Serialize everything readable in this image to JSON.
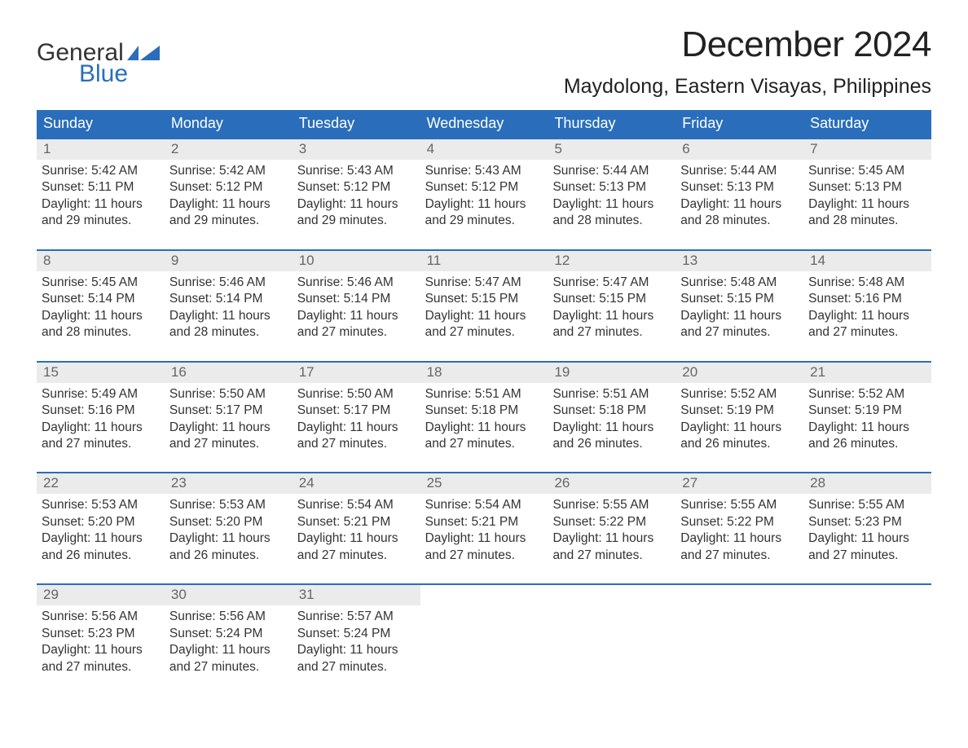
{
  "logo": {
    "text_general": "General",
    "text_blue": "Blue",
    "flag_color": "#2a6ebb"
  },
  "title": "December 2024",
  "subtitle": "Maydolong, Eastern Visayas, Philippines",
  "colors": {
    "header_bg": "#2a6ebb",
    "header_text": "#ffffff",
    "daynum_bg": "#ebebeb",
    "daynum_text": "#666666",
    "body_text": "#333333",
    "week_border": "#2a6ebb",
    "background": "#ffffff"
  },
  "typography": {
    "title_fontsize": 44,
    "subtitle_fontsize": 25,
    "dayhead_fontsize": 18,
    "daynum_fontsize": 17,
    "body_fontsize": 15.5,
    "font_family": "Arial"
  },
  "day_headers": [
    "Sunday",
    "Monday",
    "Tuesday",
    "Wednesday",
    "Thursday",
    "Friday",
    "Saturday"
  ],
  "weeks": [
    [
      {
        "day": "1",
        "sunrise": "Sunrise: 5:42 AM",
        "sunset": "Sunset: 5:11 PM",
        "daylight1": "Daylight: 11 hours",
        "daylight2": "and 29 minutes."
      },
      {
        "day": "2",
        "sunrise": "Sunrise: 5:42 AM",
        "sunset": "Sunset: 5:12 PM",
        "daylight1": "Daylight: 11 hours",
        "daylight2": "and 29 minutes."
      },
      {
        "day": "3",
        "sunrise": "Sunrise: 5:43 AM",
        "sunset": "Sunset: 5:12 PM",
        "daylight1": "Daylight: 11 hours",
        "daylight2": "and 29 minutes."
      },
      {
        "day": "4",
        "sunrise": "Sunrise: 5:43 AM",
        "sunset": "Sunset: 5:12 PM",
        "daylight1": "Daylight: 11 hours",
        "daylight2": "and 29 minutes."
      },
      {
        "day": "5",
        "sunrise": "Sunrise: 5:44 AM",
        "sunset": "Sunset: 5:13 PM",
        "daylight1": "Daylight: 11 hours",
        "daylight2": "and 28 minutes."
      },
      {
        "day": "6",
        "sunrise": "Sunrise: 5:44 AM",
        "sunset": "Sunset: 5:13 PM",
        "daylight1": "Daylight: 11 hours",
        "daylight2": "and 28 minutes."
      },
      {
        "day": "7",
        "sunrise": "Sunrise: 5:45 AM",
        "sunset": "Sunset: 5:13 PM",
        "daylight1": "Daylight: 11 hours",
        "daylight2": "and 28 minutes."
      }
    ],
    [
      {
        "day": "8",
        "sunrise": "Sunrise: 5:45 AM",
        "sunset": "Sunset: 5:14 PM",
        "daylight1": "Daylight: 11 hours",
        "daylight2": "and 28 minutes."
      },
      {
        "day": "9",
        "sunrise": "Sunrise: 5:46 AM",
        "sunset": "Sunset: 5:14 PM",
        "daylight1": "Daylight: 11 hours",
        "daylight2": "and 28 minutes."
      },
      {
        "day": "10",
        "sunrise": "Sunrise: 5:46 AM",
        "sunset": "Sunset: 5:14 PM",
        "daylight1": "Daylight: 11 hours",
        "daylight2": "and 27 minutes."
      },
      {
        "day": "11",
        "sunrise": "Sunrise: 5:47 AM",
        "sunset": "Sunset: 5:15 PM",
        "daylight1": "Daylight: 11 hours",
        "daylight2": "and 27 minutes."
      },
      {
        "day": "12",
        "sunrise": "Sunrise: 5:47 AM",
        "sunset": "Sunset: 5:15 PM",
        "daylight1": "Daylight: 11 hours",
        "daylight2": "and 27 minutes."
      },
      {
        "day": "13",
        "sunrise": "Sunrise: 5:48 AM",
        "sunset": "Sunset: 5:15 PM",
        "daylight1": "Daylight: 11 hours",
        "daylight2": "and 27 minutes."
      },
      {
        "day": "14",
        "sunrise": "Sunrise: 5:48 AM",
        "sunset": "Sunset: 5:16 PM",
        "daylight1": "Daylight: 11 hours",
        "daylight2": "and 27 minutes."
      }
    ],
    [
      {
        "day": "15",
        "sunrise": "Sunrise: 5:49 AM",
        "sunset": "Sunset: 5:16 PM",
        "daylight1": "Daylight: 11 hours",
        "daylight2": "and 27 minutes."
      },
      {
        "day": "16",
        "sunrise": "Sunrise: 5:50 AM",
        "sunset": "Sunset: 5:17 PM",
        "daylight1": "Daylight: 11 hours",
        "daylight2": "and 27 minutes."
      },
      {
        "day": "17",
        "sunrise": "Sunrise: 5:50 AM",
        "sunset": "Sunset: 5:17 PM",
        "daylight1": "Daylight: 11 hours",
        "daylight2": "and 27 minutes."
      },
      {
        "day": "18",
        "sunrise": "Sunrise: 5:51 AM",
        "sunset": "Sunset: 5:18 PM",
        "daylight1": "Daylight: 11 hours",
        "daylight2": "and 27 minutes."
      },
      {
        "day": "19",
        "sunrise": "Sunrise: 5:51 AM",
        "sunset": "Sunset: 5:18 PM",
        "daylight1": "Daylight: 11 hours",
        "daylight2": "and 26 minutes."
      },
      {
        "day": "20",
        "sunrise": "Sunrise: 5:52 AM",
        "sunset": "Sunset: 5:19 PM",
        "daylight1": "Daylight: 11 hours",
        "daylight2": "and 26 minutes."
      },
      {
        "day": "21",
        "sunrise": "Sunrise: 5:52 AM",
        "sunset": "Sunset: 5:19 PM",
        "daylight1": "Daylight: 11 hours",
        "daylight2": "and 26 minutes."
      }
    ],
    [
      {
        "day": "22",
        "sunrise": "Sunrise: 5:53 AM",
        "sunset": "Sunset: 5:20 PM",
        "daylight1": "Daylight: 11 hours",
        "daylight2": "and 26 minutes."
      },
      {
        "day": "23",
        "sunrise": "Sunrise: 5:53 AM",
        "sunset": "Sunset: 5:20 PM",
        "daylight1": "Daylight: 11 hours",
        "daylight2": "and 26 minutes."
      },
      {
        "day": "24",
        "sunrise": "Sunrise: 5:54 AM",
        "sunset": "Sunset: 5:21 PM",
        "daylight1": "Daylight: 11 hours",
        "daylight2": "and 27 minutes."
      },
      {
        "day": "25",
        "sunrise": "Sunrise: 5:54 AM",
        "sunset": "Sunset: 5:21 PM",
        "daylight1": "Daylight: 11 hours",
        "daylight2": "and 27 minutes."
      },
      {
        "day": "26",
        "sunrise": "Sunrise: 5:55 AM",
        "sunset": "Sunset: 5:22 PM",
        "daylight1": "Daylight: 11 hours",
        "daylight2": "and 27 minutes."
      },
      {
        "day": "27",
        "sunrise": "Sunrise: 5:55 AM",
        "sunset": "Sunset: 5:22 PM",
        "daylight1": "Daylight: 11 hours",
        "daylight2": "and 27 minutes."
      },
      {
        "day": "28",
        "sunrise": "Sunrise: 5:55 AM",
        "sunset": "Sunset: 5:23 PM",
        "daylight1": "Daylight: 11 hours",
        "daylight2": "and 27 minutes."
      }
    ],
    [
      {
        "day": "29",
        "sunrise": "Sunrise: 5:56 AM",
        "sunset": "Sunset: 5:23 PM",
        "daylight1": "Daylight: 11 hours",
        "daylight2": "and 27 minutes."
      },
      {
        "day": "30",
        "sunrise": "Sunrise: 5:56 AM",
        "sunset": "Sunset: 5:24 PM",
        "daylight1": "Daylight: 11 hours",
        "daylight2": "and 27 minutes."
      },
      {
        "day": "31",
        "sunrise": "Sunrise: 5:57 AM",
        "sunset": "Sunset: 5:24 PM",
        "daylight1": "Daylight: 11 hours",
        "daylight2": "and 27 minutes."
      },
      {
        "empty": true
      },
      {
        "empty": true
      },
      {
        "empty": true
      },
      {
        "empty": true
      }
    ]
  ]
}
